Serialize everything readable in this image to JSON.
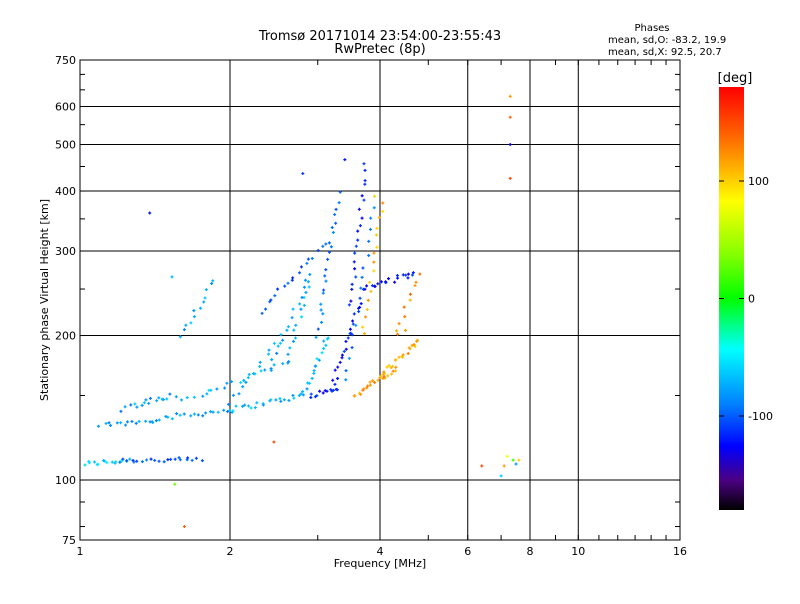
{
  "chart_data": {
    "type": "scatter",
    "title": "Tromsø 20171014 23:54:00-23:55:43",
    "subtitle": "RwPretec (8p)",
    "xlabel": "Frequency [MHz]",
    "ylabel": "Stationary phase Virtual Height [km]",
    "x_scale": "log",
    "y_scale": "log",
    "xlim": [
      1,
      16
    ],
    "ylim": [
      75,
      750
    ],
    "x_ticks": [
      1,
      2,
      4,
      6,
      8,
      10,
      16
    ],
    "x_tick_labels": [
      "1",
      "2",
      "4",
      "6",
      "8",
      "10",
      "16"
    ],
    "y_ticks": [
      75,
      100,
      200,
      300,
      400,
      500,
      600,
      750
    ],
    "y_tick_labels": [
      "75",
      "100",
      "200",
      "300",
      "400",
      "500",
      "600",
      "750"
    ],
    "grid": true,
    "stats": {
      "heading": "Phases",
      "line_o": "mean, sd,O: -83.2, 19.9",
      "line_x": "mean, sd,X:  92.5, 20.7"
    },
    "colorbar": {
      "label": "[deg]",
      "range": [
        -180,
        180
      ],
      "ticks": [
        100,
        0,
        -100
      ],
      "tick_labels": [
        "100",
        "0",
        "-100"
      ]
    },
    "traces": [
      {
        "f0": 1.02,
        "f1": 1.25,
        "h0": 108,
        "h1": 110,
        "phase": -60,
        "n": 16
      },
      {
        "f0": 1.2,
        "f1": 1.75,
        "h0": 110,
        "h1": 110,
        "phase": -100,
        "n": 22
      },
      {
        "f0": 1.1,
        "f1": 1.4,
        "h0": 130,
        "h1": 133,
        "phase": -85,
        "n": 14
      },
      {
        "f0": 1.4,
        "f1": 2.0,
        "h0": 134,
        "h1": 140,
        "phase": -78,
        "n": 20
      },
      {
        "f0": 2.0,
        "f1": 2.8,
        "h0": 140,
        "h1": 150,
        "phase": -72,
        "n": 22
      },
      {
        "f0": 2.8,
        "f1": 3.15,
        "h0": 150,
        "h1": 200,
        "phase": -70,
        "n": 18
      },
      {
        "f0": 3.0,
        "f1": 3.3,
        "h0": 200,
        "h1": 395,
        "phase": -90,
        "n": 22
      },
      {
        "f0": 1.3,
        "f1": 1.8,
        "h0": 145,
        "h1": 150,
        "phase": -75,
        "n": 12
      },
      {
        "f0": 1.8,
        "f1": 2.6,
        "h0": 152,
        "h1": 175,
        "phase": -70,
        "n": 16
      },
      {
        "f0": 2.6,
        "f1": 2.9,
        "h0": 178,
        "h1": 260,
        "phase": -68,
        "n": 14
      },
      {
        "f0": 1.2,
        "f1": 1.5,
        "h0": 140,
        "h1": 150,
        "phase": -85,
        "n": 10
      },
      {
        "f0": 2.0,
        "f1": 2.55,
        "h0": 145,
        "h1": 200,
        "phase": -75,
        "n": 14
      },
      {
        "f0": 2.4,
        "f1": 2.9,
        "h0": 170,
        "h1": 270,
        "phase": -80,
        "n": 14
      },
      {
        "f0": 2.3,
        "f1": 3.1,
        "h0": 225,
        "h1": 310,
        "phase": -105,
        "n": 18
      },
      {
        "f0": 2.9,
        "f1": 3.3,
        "h0": 150,
        "h1": 155,
        "phase": -115,
        "n": 12
      },
      {
        "f0": 3.2,
        "f1": 3.65,
        "h0": 155,
        "h1": 235,
        "phase": -115,
        "n": 22
      },
      {
        "f0": 3.5,
        "f1": 3.75,
        "h0": 230,
        "h1": 455,
        "phase": -120,
        "n": 20
      },
      {
        "f0": 3.7,
        "f1": 4.7,
        "h0": 250,
        "h1": 270,
        "phase": -120,
        "n": 20
      },
      {
        "f0": 3.4,
        "f1": 3.9,
        "h0": 160,
        "h1": 370,
        "phase": -95,
        "n": 16
      },
      {
        "f0": 3.55,
        "f1": 4.3,
        "h0": 150,
        "h1": 170,
        "phase": 120,
        "n": 22
      },
      {
        "f0": 4.0,
        "f1": 4.8,
        "h0": 165,
        "h1": 195,
        "phase": 115,
        "n": 22
      },
      {
        "f0": 3.7,
        "f1": 4.05,
        "h0": 200,
        "h1": 380,
        "phase": 110,
        "n": 16
      },
      {
        "f0": 4.3,
        "f1": 4.8,
        "h0": 200,
        "h1": 270,
        "phase": 125,
        "n": 10
      },
      {
        "f0": 1.6,
        "f1": 1.85,
        "h0": 200,
        "h1": 260,
        "phase": -75,
        "n": 12
      }
    ],
    "isolated_points": [
      {
        "f": 1.38,
        "h": 360,
        "phase": -120
      },
      {
        "f": 1.53,
        "h": 265,
        "phase": -70
      },
      {
        "f": 1.55,
        "h": 98,
        "phase": 30
      },
      {
        "f": 1.62,
        "h": 80,
        "phase": 140
      },
      {
        "f": 2.8,
        "h": 435,
        "phase": -110
      },
      {
        "f": 3.4,
        "h": 465,
        "phase": -120
      },
      {
        "f": 3.9,
        "h": 390,
        "phase": 100
      },
      {
        "f": 4.5,
        "h": 205,
        "phase": 120
      },
      {
        "f": 2.45,
        "h": 120,
        "phase": 150
      },
      {
        "f": 7.3,
        "h": 630,
        "phase": 120
      },
      {
        "f": 7.3,
        "h": 570,
        "phase": 140
      },
      {
        "f": 7.3,
        "h": 500,
        "phase": -130
      },
      {
        "f": 7.3,
        "h": 425,
        "phase": 150
      },
      {
        "f": 6.4,
        "h": 107,
        "phase": 150
      },
      {
        "f": 7.0,
        "h": 102,
        "phase": -60
      },
      {
        "f": 7.2,
        "h": 112,
        "phase": 80
      },
      {
        "f": 7.4,
        "h": 110,
        "phase": 20
      },
      {
        "f": 7.5,
        "h": 108,
        "phase": -80
      },
      {
        "f": 7.6,
        "h": 110,
        "phase": 100
      },
      {
        "f": 7.1,
        "h": 107,
        "phase": 120
      }
    ]
  }
}
